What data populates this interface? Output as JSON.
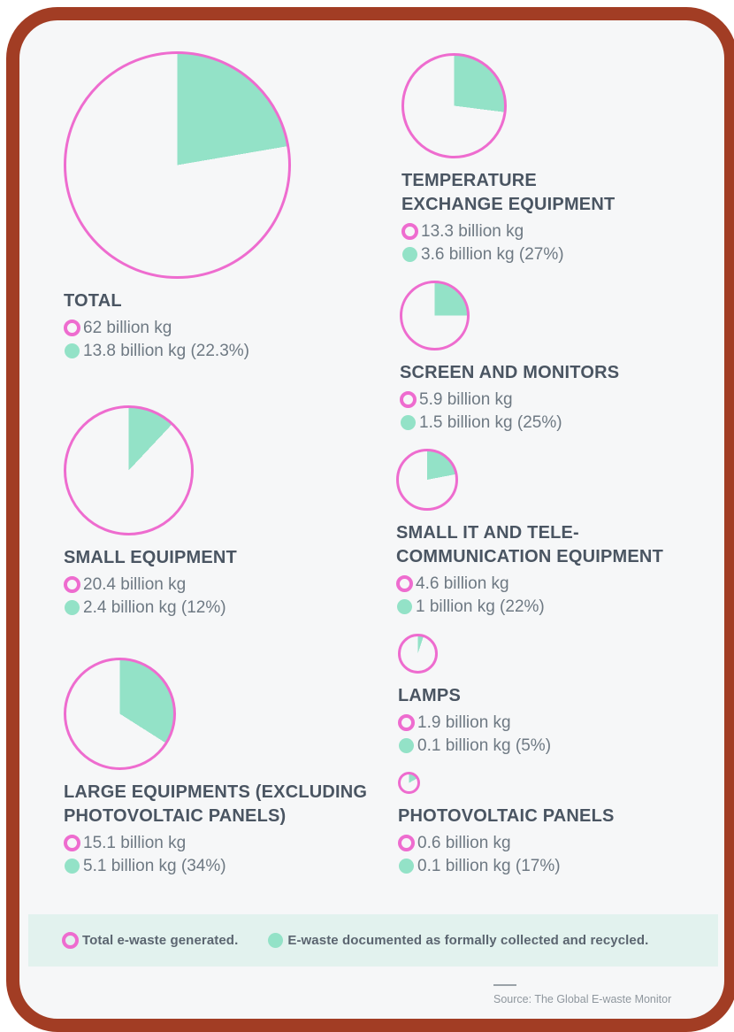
{
  "legend": {
    "generated_label": "Total e-waste generated.",
    "recycled_label": "E-waste documented as formally collected and recycled."
  },
  "source": {
    "text": "Source: The Global E-waste Monitor"
  },
  "colors": {
    "pink": "#ee6ccf",
    "green": "#93e2c7",
    "frame_red": "#a23d24",
    "legend_band": "#e2f2ee",
    "title_text": "#4a5562",
    "stat_text": "#6e7983"
  },
  "categories": [
    {
      "id": "total",
      "title_lines": [
        "TOTAL"
      ],
      "generated": "62 billion kg",
      "recycled": "13.8 billion kg (22.3%)"
    },
    {
      "id": "temp-exchange",
      "title_lines": [
        "TEMPERATURE",
        "EXCHANGE EQUIPMENT"
      ],
      "generated": "13.3 billion kg",
      "recycled": "3.6 billion kg (27%)"
    },
    {
      "id": "screens",
      "title_lines": [
        "SCREEN AND MONITORS"
      ],
      "generated": "5.9 billion kg",
      "recycled": "1.5 billion kg (25%)"
    },
    {
      "id": "small-equipment",
      "title_lines": [
        "SMALL EQUIPMENT"
      ],
      "generated": "20.4 billion kg",
      "recycled": "2.4 billion kg (12%)"
    },
    {
      "id": "small-it",
      "title_lines": [
        "SMALL IT AND TELE-",
        "COMMUNICATION EQUIPMENT"
      ],
      "generated": "4.6 billion kg",
      "recycled": "1 billion kg (22%)"
    },
    {
      "id": "lamps",
      "title_lines": [
        "LAMPS"
      ],
      "generated": "1.9 billion kg",
      "recycled": "0.1 billion kg (5%)"
    },
    {
      "id": "large-equipment",
      "title_lines": [
        "LARGE EQUIPMENTS (EXCLUDING",
        "PHOTOVOLTAIC PANELS)"
      ],
      "generated": "15.1 billion kg",
      "recycled": "5.1 billion kg (34%)"
    },
    {
      "id": "pv-panels",
      "title_lines": [
        "PHOTOVOLTAIC PANELS"
      ],
      "generated": "0.6 billion kg",
      "recycled": "0.1 billion kg (17%)"
    }
  ],
  "chart_data": {
    "type": "pie",
    "subtype": "proportional-pie-multiples",
    "unit": "billion kg",
    "note": "Circle area is proportional to total e-waste generated; green wedge starts at 12 o'clock clockwise and equals the recycled share.",
    "categories": [
      "Total",
      "Temperature Exchange Equipment",
      "Screen and Monitors",
      "Small Equipment",
      "Small IT and Telecommunication Equipment",
      "Lamps",
      "Large Equipments (excluding Photovoltaic Panels)",
      "Photovoltaic Panels"
    ],
    "series": [
      {
        "name": "Total e-waste generated (billion kg)",
        "values": [
          62,
          13.3,
          5.9,
          20.4,
          4.6,
          1.9,
          15.1,
          0.6
        ]
      },
      {
        "name": "E-waste documented as formally collected and recycled (billion kg)",
        "values": [
          13.8,
          3.6,
          1.5,
          2.4,
          1,
          0.1,
          5.1,
          0.1
        ]
      },
      {
        "name": "Recycled share (%)",
        "values": [
          22.3,
          27,
          25,
          12,
          22,
          5,
          34,
          17
        ]
      }
    ],
    "legend_position": "bottom"
  }
}
